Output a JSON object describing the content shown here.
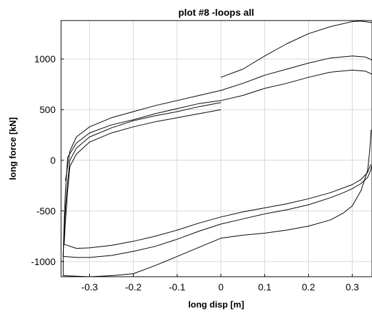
{
  "chart_data": {
    "type": "line",
    "title": "plot #8 -loops all",
    "xlabel": "long disp [m]",
    "ylabel": "long force [kN]",
    "xlim": [
      -0.365,
      0.345
    ],
    "ylim": [
      -1150,
      1380
    ],
    "xticks": [
      -0.3,
      -0.2,
      -0.1,
      0,
      0.1,
      0.2,
      0.3
    ],
    "xtick_labels": [
      "-0.3",
      "-0.2",
      "-0.1",
      "0",
      "0.1",
      "0.2",
      "0.3"
    ],
    "yticks": [
      -1000,
      -500,
      0,
      500,
      1000
    ],
    "ytick_labels": [
      "-1000",
      "-500",
      "0",
      "500",
      "1000"
    ],
    "grid": true,
    "series": [
      {
        "points": [
          [
            0,
            500
          ],
          [
            -0.05,
            460
          ],
          [
            -0.1,
            420
          ],
          [
            -0.15,
            380
          ],
          [
            -0.2,
            330
          ],
          [
            -0.25,
            270
          ],
          [
            -0.3,
            180
          ],
          [
            -0.33,
            60
          ],
          [
            -0.345,
            -60
          ],
          [
            -0.35,
            -300
          ],
          [
            -0.355,
            -600
          ],
          [
            -0.358,
            -830
          ],
          [
            -0.33,
            -870
          ],
          [
            -0.3,
            -865
          ],
          [
            -0.25,
            -840
          ],
          [
            -0.2,
            -800
          ],
          [
            -0.15,
            -750
          ],
          [
            -0.1,
            -690
          ],
          [
            -0.05,
            -620
          ],
          [
            0,
            -560
          ],
          [
            0.05,
            -510
          ],
          [
            0.1,
            -470
          ],
          [
            0.15,
            -430
          ],
          [
            0.2,
            -380
          ],
          [
            0.25,
            -320
          ],
          [
            0.3,
            -240
          ],
          [
            0.32,
            -190
          ],
          [
            0.335,
            -120
          ],
          [
            0.342,
            -40
          ]
        ]
      },
      {
        "points": [
          [
            0,
            570
          ],
          [
            -0.05,
            530
          ],
          [
            -0.1,
            480
          ],
          [
            -0.15,
            440
          ],
          [
            -0.2,
            390
          ],
          [
            -0.25,
            320
          ],
          [
            -0.3,
            230
          ],
          [
            -0.33,
            120
          ],
          [
            -0.345,
            0
          ],
          [
            -0.352,
            -300
          ],
          [
            -0.357,
            -600
          ],
          [
            -0.36,
            -950
          ],
          [
            -0.33,
            -960
          ],
          [
            -0.3,
            -960
          ],
          [
            -0.25,
            -940
          ],
          [
            -0.2,
            -900
          ],
          [
            -0.15,
            -850
          ],
          [
            -0.1,
            -780
          ],
          [
            -0.05,
            -700
          ],
          [
            0,
            -630
          ],
          [
            0.05,
            -580
          ],
          [
            0.1,
            -530
          ],
          [
            0.15,
            -490
          ],
          [
            0.2,
            -440
          ],
          [
            0.25,
            -370
          ],
          [
            0.28,
            -320
          ],
          [
            0.3,
            -280
          ],
          [
            0.32,
            -230
          ],
          [
            0.335,
            -170
          ],
          [
            0.342,
            -100
          ],
          [
            0.345,
            -40
          ]
        ]
      },
      {
        "points": [
          [
            0.345,
            850
          ],
          [
            0.33,
            880
          ],
          [
            0.3,
            890
          ],
          [
            0.25,
            870
          ],
          [
            0.2,
            820
          ],
          [
            0.15,
            760
          ],
          [
            0.1,
            710
          ],
          [
            0.05,
            640
          ],
          [
            0,
            590
          ],
          [
            -0.05,
            560
          ],
          [
            -0.1,
            510
          ],
          [
            -0.15,
            460
          ],
          [
            -0.2,
            400
          ],
          [
            -0.25,
            350
          ],
          [
            -0.3,
            270
          ],
          [
            -0.33,
            170
          ],
          [
            -0.35,
            30
          ],
          [
            -0.355,
            -300
          ],
          [
            -0.358,
            -600
          ],
          [
            -0.36,
            -950
          ],
          [
            -0.36,
            -1140
          ],
          [
            -0.3,
            -1150
          ],
          [
            -0.25,
            -1140
          ],
          [
            -0.2,
            -1120
          ],
          [
            -0.15,
            -1040
          ],
          [
            -0.1,
            -950
          ],
          [
            -0.05,
            -860
          ],
          [
            0,
            -770
          ],
          [
            0.05,
            -740
          ],
          [
            0.1,
            -720
          ],
          [
            0.15,
            -690
          ],
          [
            0.2,
            -650
          ],
          [
            0.25,
            -590
          ],
          [
            0.28,
            -520
          ],
          [
            0.3,
            -450
          ],
          [
            0.32,
            -300
          ],
          [
            0.335,
            -100
          ],
          [
            0.34,
            100
          ],
          [
            0.343,
            300
          ]
        ]
      },
      {
        "points": [
          [
            0.345,
            990
          ],
          [
            0.33,
            1020
          ],
          [
            0.3,
            1030
          ],
          [
            0.25,
            1010
          ],
          [
            0.2,
            960
          ],
          [
            0.15,
            900
          ],
          [
            0.1,
            840
          ],
          [
            0.05,
            760
          ],
          [
            0,
            690
          ],
          [
            -0.05,
            640
          ],
          [
            -0.1,
            590
          ],
          [
            -0.15,
            540
          ],
          [
            -0.2,
            480
          ],
          [
            -0.25,
            420
          ],
          [
            -0.3,
            330
          ],
          [
            -0.33,
            230
          ],
          [
            -0.345,
            90
          ],
          [
            -0.355,
            -200
          ]
        ]
      },
      {
        "points": [
          [
            0,
            820
          ],
          [
            0.05,
            900
          ],
          [
            0.1,
            1030
          ],
          [
            0.15,
            1150
          ],
          [
            0.2,
            1250
          ],
          [
            0.25,
            1320
          ],
          [
            0.3,
            1370
          ],
          [
            0.32,
            1375
          ],
          [
            0.345,
            1360
          ]
        ]
      }
    ]
  }
}
